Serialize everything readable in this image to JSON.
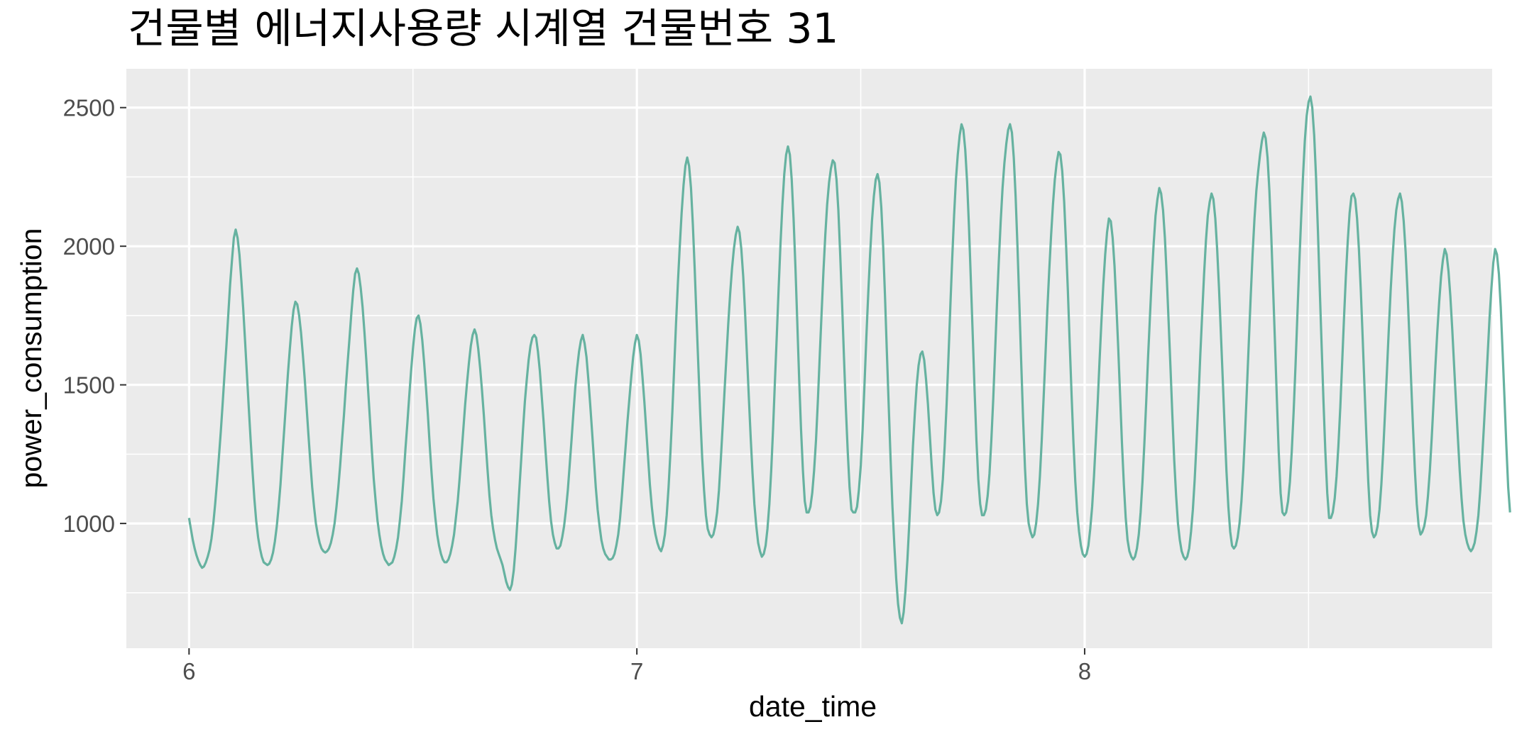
{
  "chart_data": {
    "type": "line",
    "title": "건물별 에너지사용량 시계열 건물번호 31",
    "xlabel": "date_time",
    "ylabel": "power_consumption",
    "xlim": [
      5.86,
      8.91
    ],
    "ylim": [
      550,
      2640
    ],
    "x_ticks": [
      6,
      7,
      8
    ],
    "x_tick_labels": [
      "6",
      "7",
      "8"
    ],
    "y_ticks": [
      1000,
      1500,
      2000,
      2500
    ],
    "y_tick_labels": [
      "1000",
      "1500",
      "2000",
      "2500"
    ],
    "grid": true,
    "line_color": "#66b2a0",
    "panel_background": "#ebebeb",
    "x_start": 6.0,
    "x_step": 0.0041667,
    "daily_peaks": [
      2060,
      1800,
      1900,
      1750,
      1700,
      1680,
      2320,
      2070,
      2360,
      2310,
      2440,
      2440,
      2340,
      2100,
      2210,
      2190,
      2140,
      2410,
      2540,
      2190,
      2190,
      1990
    ],
    "daily_troughs": [
      830,
      860,
      870,
      760,
      960,
      870,
      950,
      880,
      1040,
      640,
      1030,
      1030,
      950,
      880,
      890,
      870,
      910,
      1020,
      1030,
      960,
      980,
      900
    ],
    "series": [
      {
        "values": [
          1020,
          980,
          940,
          910,
          885,
          865,
          850,
          840,
          845,
          860,
          880,
          905,
          945,
          1000,
          1070,
          1150,
          1240,
          1330,
          1430,
          1540,
          1640,
          1750,
          1860,
          1950,
          2030,
          2060,
          2030,
          1970,
          1880,
          1780,
          1660,
          1540,
          1420,
          1300,
          1190,
          1090,
          1010,
          950,
          910,
          880,
          860,
          855,
          850,
          855,
          870,
          895,
          935,
          990,
          1060,
          1140,
          1240,
          1340,
          1440,
          1540,
          1630,
          1710,
          1770,
          1800,
          1790,
          1750,
          1690,
          1610,
          1520,
          1420,
          1320,
          1220,
          1130,
          1060,
          1000,
          960,
          930,
          910,
          900,
          895,
          900,
          910,
          930,
          960,
          1000,
          1060,
          1130,
          1210,
          1300,
          1390,
          1490,
          1580,
          1670,
          1760,
          1840,
          1900,
          1920,
          1900,
          1850,
          1780,
          1690,
          1590,
          1480,
          1370,
          1260,
          1160,
          1080,
          1010,
          960,
          920,
          890,
          870,
          860,
          850,
          855,
          860,
          880,
          910,
          950,
          1010,
          1080,
          1170,
          1270,
          1360,
          1460,
          1550,
          1630,
          1700,
          1740,
          1750,
          1720,
          1660,
          1580,
          1490,
          1390,
          1280,
          1180,
          1090,
          1020,
          960,
          920,
          890,
          870,
          860,
          860,
          870,
          890,
          920,
          960,
          1020,
          1080,
          1160,
          1250,
          1340,
          1430,
          1510,
          1580,
          1640,
          1680,
          1700,
          1680,
          1630,
          1560,
          1480,
          1390,
          1290,
          1190,
          1100,
          1030,
          980,
          940,
          910,
          890,
          870,
          850,
          820,
          790,
          770,
          760,
          780,
          830,
          910,
          1010,
          1120,
          1230,
          1340,
          1440,
          1520,
          1590,
          1640,
          1670,
          1680,
          1670,
          1620,
          1550,
          1460,
          1370,
          1270,
          1170,
          1080,
          1010,
          960,
          930,
          910,
          910,
          920,
          950,
          990,
          1050,
          1120,
          1210,
          1300,
          1400,
          1490,
          1560,
          1620,
          1660,
          1680,
          1650,
          1600,
          1520,
          1430,
          1330,
          1230,
          1130,
          1050,
          990,
          940,
          910,
          890,
          880,
          870,
          870,
          875,
          890,
          920,
          960,
          1020,
          1100,
          1190,
          1280,
          1370,
          1450,
          1530,
          1600,
          1650,
          1680,
          1660,
          1610,
          1530,
          1440,
          1340,
          1240,
          1140,
          1060,
          1000,
          960,
          930,
          910,
          900,
          920,
          960,
          1030,
          1130,
          1260,
          1400,
          1560,
          1720,
          1870,
          2000,
          2120,
          2220,
          2290,
          2320,
          2290,
          2210,
          2080,
          1920,
          1740,
          1560,
          1390,
          1240,
          1120,
          1030,
          980,
          960,
          950,
          960,
          990,
          1040,
          1120,
          1230,
          1350,
          1480,
          1600,
          1720,
          1830,
          1920,
          1990,
          2040,
          2070,
          2050,
          1990,
          1890,
          1760,
          1610,
          1460,
          1310,
          1180,
          1070,
          990,
          930,
          900,
          880,
          890,
          920,
          980,
          1070,
          1190,
          1340,
          1510,
          1680,
          1850,
          2010,
          2150,
          2260,
          2330,
          2360,
          2330,
          2240,
          2100,
          1920,
          1720,
          1520,
          1340,
          1190,
          1080,
          1040,
          1040,
          1060,
          1110,
          1190,
          1300,
          1440,
          1600,
          1760,
          1910,
          2040,
          2150,
          2230,
          2280,
          2310,
          2300,
          2240,
          2130,
          1970,
          1790,
          1600,
          1420,
          1260,
          1130,
          1050,
          1040,
          1040,
          1060,
          1120,
          1210,
          1340,
          1500,
          1670,
          1830,
          1970,
          2090,
          2180,
          2240,
          2260,
          2230,
          2140,
          2000,
          1820,
          1620,
          1420,
          1230,
          1060,
          920,
          800,
          710,
          660,
          640,
          680,
          760,
          870,
          1000,
          1140,
          1280,
          1400,
          1500,
          1570,
          1610,
          1620,
          1590,
          1520,
          1430,
          1320,
          1210,
          1110,
          1050,
          1030,
          1040,
          1080,
          1160,
          1280,
          1430,
          1600,
          1780,
          1950,
          2110,
          2240,
          2330,
          2400,
          2440,
          2420,
          2350,
          2230,
          2070,
          1880,
          1680,
          1480,
          1300,
          1160,
          1070,
          1030,
          1030,
          1050,
          1100,
          1180,
          1300,
          1450,
          1620,
          1790,
          1950,
          2090,
          2210,
          2300,
          2370,
          2420,
          2440,
          2410,
          2320,
          2180,
          2000,
          1790,
          1580,
          1380,
          1200,
          1070,
          1000,
          970,
          950,
          960,
          1000,
          1070,
          1170,
          1300,
          1450,
          1610,
          1770,
          1910,
          2040,
          2150,
          2240,
          2300,
          2340,
          2330,
          2270,
          2160,
          2010,
          1840,
          1650,
          1460,
          1290,
          1150,
          1040,
          970,
          920,
          890,
          880,
          890,
          920,
          980,
          1060,
          1170,
          1300,
          1440,
          1590,
          1730,
          1860,
          1970,
          2050,
          2100,
          2090,
          2030,
          1930,
          1790,
          1630,
          1460,
          1290,
          1140,
          1020,
          940,
          900,
          880,
          870,
          880,
          910,
          960,
          1040,
          1150,
          1290,
          1440,
          1600,
          1750,
          1890,
          2010,
          2110,
          2170,
          2210,
          2190,
          2130,
          2030,
          1890,
          1730,
          1560,
          1390,
          1230,
          1100,
          1000,
          940,
          900,
          880,
          870,
          880,
          910,
          970,
          1050,
          1160,
          1300,
          1450,
          1610,
          1760,
          1900,
          2020,
          2110,
          2160,
          2190,
          2170,
          2100,
          1990,
          1850,
          1690,
          1520,
          1350,
          1190,
          1060,
          970,
          920,
          910,
          920,
          950,
          1000,
          1080,
          1190,
          1330,
          1490,
          1660,
          1820,
          1970,
          2100,
          2200,
          2270,
          2330,
          2380,
          2410,
          2390,
          2320,
          2200,
          2040,
          1850,
          1650,
          1450,
          1260,
          1110,
          1040,
          1030,
          1040,
          1080,
          1150,
          1260,
          1400,
          1570,
          1750,
          1930,
          2100,
          2250,
          2380,
          2470,
          2520,
          2540,
          2500,
          2400,
          2250,
          2060,
          1850,
          1640,
          1440,
          1260,
          1110,
          1020,
          1020,
          1040,
          1090,
          1170,
          1280,
          1420,
          1580,
          1740,
          1890,
          2020,
          2120,
          2180,
          2190,
          2170,
          2100,
          1990,
          1840,
          1670,
          1490,
          1310,
          1150,
          1030,
          970,
          950,
          960,
          990,
          1050,
          1140,
          1260,
          1400,
          1550,
          1700,
          1840,
          1960,
          2060,
          2130,
          2170,
          2190,
          2160,
          2090,
          1980,
          1840,
          1680,
          1510,
          1340,
          1190,
          1070,
          990,
          960,
          970,
          990,
          1030,
          1100,
          1190,
          1310,
          1440,
          1570,
          1690,
          1800,
          1890,
          1950,
          1990,
          1970,
          1910,
          1820,
          1700,
          1570,
          1440,
          1310,
          1190,
          1090,
          1010,
          960,
          930,
          910,
          900,
          910,
          930,
          970,
          1030,
          1120,
          1230,
          1350,
          1480,
          1610,
          1740,
          1850,
          1940,
          1990,
          1970,
          1900,
          1780,
          1620,
          1450,
          1280,
          1130,
          1040
        ]
      }
    ]
  }
}
